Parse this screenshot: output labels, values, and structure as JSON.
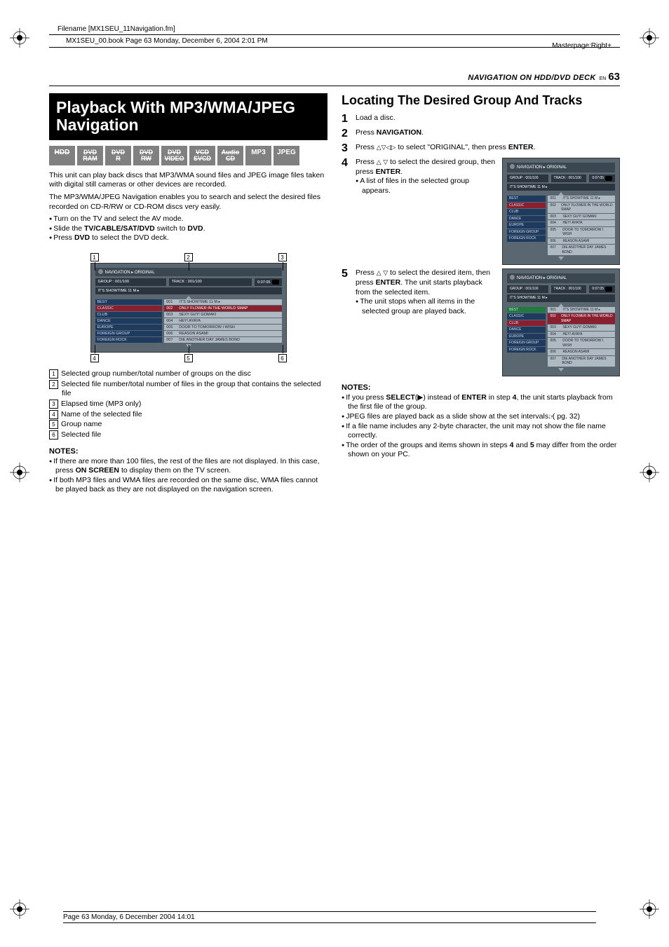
{
  "meta": {
    "filename_label": "Filename [MX1SEU_11Navigation.fm]",
    "bookline": "MX1SEU_00.book  Page 63  Monday, December 6, 2004  2:01 PM",
    "masterpage": "Masterpage:Right+",
    "footer": "Page 63 Monday, 6 December 2004  14:01"
  },
  "header": {
    "section": "NAVIGATION ON HDD/DVD DECK",
    "en": "EN",
    "page": "63"
  },
  "left": {
    "title": "Playback With MP3/WMA/JPEG Navigation",
    "badges": [
      {
        "t": "HDD",
        "strike": true,
        "two": null
      },
      {
        "t": "DVD",
        "two": "RAM",
        "strike": true
      },
      {
        "t": "DVD",
        "two": "R",
        "strike": true
      },
      {
        "t": "DVD",
        "two": "RW",
        "strike": true
      },
      {
        "t": "DVD",
        "two": "VIDEO",
        "strike": true
      },
      {
        "t": "VCD",
        "two": "SVCD",
        "strike": true
      },
      {
        "t": "Audio",
        "two": "CD",
        "strike": true
      },
      {
        "t": "MP3",
        "two": null,
        "strike": false
      },
      {
        "t": "JPEG",
        "two": null,
        "strike": false
      }
    ],
    "intro1": "This unit can play back discs that MP3/WMA sound files and JPEG image files taken with digital still cameras or other devices are recorded.",
    "intro2": "The MP3/WMA/JPEG Navigation enables you to search and select the desired files recorded on CD-R/RW or CD-ROM discs very easily.",
    "prep": [
      "Turn on the TV and select the AV mode.",
      "Slide the <b>TV/CABLE/SAT/DVD</b> switch to <b>DVD</b>.",
      "Press <b>DVD</b> to select the DVD deck."
    ],
    "legend": [
      "Selected group number/total number of groups on the disc",
      "Selected file number/total number of files in the group that contains the selected file",
      "Elapsed time (MP3 only)",
      "Name of the selected file",
      "Group name",
      "Selected file"
    ],
    "notes_h": "NOTES:",
    "notes": [
      "If there are more than 100 files, the rest of the files are not displayed. In this case, press <b>ON SCREEN</b> to display them on the TV screen.",
      "If both MP3 files and WMA files are recorded on the same disc, WMA files cannot be played back as they are not displayed on the navigation screen."
    ]
  },
  "right": {
    "h2": "Locating The Desired Group And Tracks",
    "steps": [
      {
        "n": "1",
        "html": "Load a disc."
      },
      {
        "n": "2",
        "html": "Press <b>NAVIGATION</b>."
      },
      {
        "n": "3",
        "html": "Press <span class='tri'>△▽◁▷</span> to select \"ORIGINAL\", then press <b>ENTER</b>."
      },
      {
        "n": "4",
        "html": "Press <span class='tri'>△ ▽</span> to select the desired group, then press <b>ENTER</b>.",
        "sub": [
          "A list of files in the selected group appears."
        ],
        "shot": "a"
      },
      {
        "n": "5",
        "html": "Press <span class='tri'>△ ▽</span> to select the desired item, then press <b>ENTER</b>. The unit starts playback from the selected item.",
        "sub": [
          "The unit stops when all items in the selected group are played back."
        ],
        "shot": "b"
      }
    ],
    "notes_h": "NOTES:",
    "notes": [
      "If you press <b>SELECT</b>(▶) instead of <b>ENTER</b> in step <b>4</b>, the unit starts playback from the first file of the group.",
      "JPEG files are played back as a slide show at the set intervals. (<span class='pgref'>☞</span> pg. 32)",
      "If a file name includes any 2-byte character, the unit may not show the file name correctly.",
      "The order of the groups and items shown in steps <b>4</b> and <b>5</b> may differ from the order shown on your PC."
    ]
  },
  "screen": {
    "title": "NAVIGATION ▸ ORIGINAL",
    "group": "GROUP : 001/100",
    "track": "TRACK : 001/100",
    "time": "0:07:05",
    "nowplaying": "IT'S SHOWTIME 11 M ▸",
    "side_a": [
      {
        "t": "BEST",
        "sel": false
      },
      {
        "t": "CLASSIC",
        "sel": true
      },
      {
        "t": "CLUB",
        "sel": false
      },
      {
        "t": "DANCE",
        "sel": false
      },
      {
        "t": "EUROPE",
        "sel": false
      },
      {
        "t": "FOREIGN GROUP",
        "sel": false
      },
      {
        "t": "FOREIGN ROCK",
        "sel": false
      }
    ],
    "side_b": [
      {
        "t": "BEST",
        "sel": "g"
      },
      {
        "t": "CLASSIC",
        "sel": false
      },
      {
        "t": "CLUB",
        "sel": true
      },
      {
        "t": "DANCE",
        "sel": false
      },
      {
        "t": "EUROPE",
        "sel": false
      },
      {
        "t": "FOREIGN GROUP",
        "sel": false
      },
      {
        "t": "FOREIGN ROCK",
        "sel": false
      }
    ],
    "rows": [
      {
        "n": "001",
        "t": "IT'S SHOWTIME 11 M ▸"
      },
      {
        "n": "002",
        "t": "ONLY FLOWER IN THE WORLD SMAP"
      },
      {
        "n": "003",
        "t": "SEXY GUY! GOMAKI"
      },
      {
        "n": "004",
        "t": "HEY! AYAYA"
      },
      {
        "n": "005",
        "t": "DOOR TO TOMORROW I WISH"
      },
      {
        "n": "006",
        "t": "REASON ASAMI"
      },
      {
        "n": "007",
        "t": "DIE ANOTHER DAY JAMES BOND"
      }
    ]
  },
  "callouts": {
    "top": [
      "1",
      "2",
      "3"
    ],
    "bottom": [
      "4",
      "5",
      "6"
    ]
  }
}
